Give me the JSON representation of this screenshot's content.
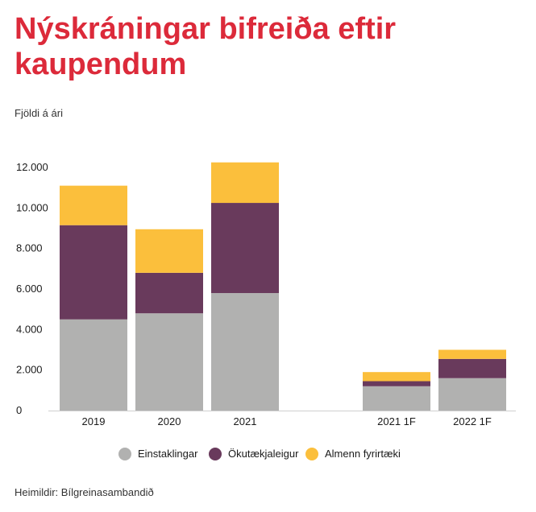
{
  "header": {
    "title": "Nýskráningar bifreiða eftir kaupendum",
    "subtitle": "Fjöldi á ári"
  },
  "footer": {
    "source": "Heimildir: Bílgreinasambandið"
  },
  "colors": {
    "title": "#dc2a3a",
    "einstaklingar": "#b1b1b0",
    "okutaekjaleigur": "#693a5c",
    "almenn": "#fbbf3c"
  },
  "chart_data": {
    "type": "bar",
    "stacked": true,
    "categories": [
      "2019",
      "2020",
      "2021",
      "2021 1F",
      "2022 1F"
    ],
    "series": [
      {
        "name": "Einstaklingar",
        "values": [
          4500,
          4800,
          5800,
          1200,
          1600
        ],
        "color": "#b1b1b0"
      },
      {
        "name": "Ökutækjaleigur",
        "values": [
          4650,
          2000,
          4450,
          250,
          950
        ],
        "color": "#693a5c"
      },
      {
        "name": "Almenn fyrirtæki",
        "values": [
          1950,
          2150,
          2000,
          450,
          450
        ],
        "color": "#fbbf3c"
      }
    ],
    "ylim": [
      0,
      12000
    ],
    "yticks": [
      0,
      2000,
      4000,
      6000,
      8000,
      10000,
      12000
    ],
    "ytick_labels": [
      "0",
      "2.000",
      "4.000",
      "6.000",
      "8.000",
      "10.000",
      "12.000"
    ],
    "grid": false,
    "legend": "bottom-center"
  }
}
